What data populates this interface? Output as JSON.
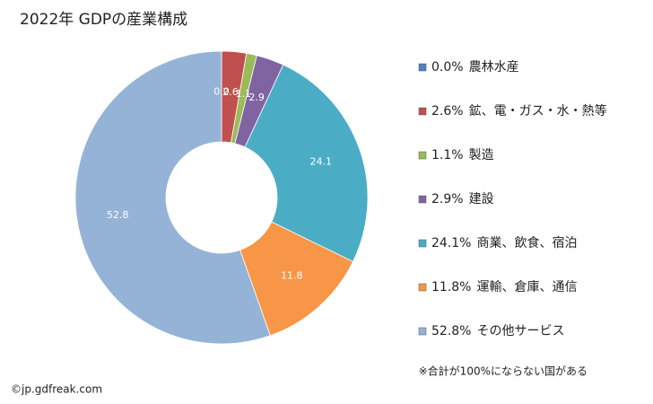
{
  "chart_data": {
    "type": "pie",
    "donut": true,
    "title": "2022年 GDPの産業構成",
    "categories": [
      "農林水産",
      "鉱、電・ガス・水・熱等",
      "製造",
      "建設",
      "商業、飲食、宿泊",
      "運輸、倉庫、通信",
      "その他サービス"
    ],
    "values": [
      0.0,
      2.6,
      1.1,
      2.9,
      24.1,
      11.8,
      52.8
    ],
    "value_labels": [
      "0.0",
      "2.6",
      "1.1",
      "2.9",
      "24.1",
      "11.8",
      "52.8"
    ],
    "legend_value_labels": [
      "0.0%",
      "2.6%",
      "1.1%",
      "2.9%",
      "24.1%",
      "11.8%",
      "52.8%"
    ],
    "colors": [
      "#4f81bd",
      "#c0504d",
      "#9bbb59",
      "#8064a2",
      "#4bacc6",
      "#f79646",
      "#95b3d7"
    ],
    "legend_position": "right",
    "note": "※合計が100%にならない国がある",
    "source": "©jp.gdfreak.com"
  }
}
